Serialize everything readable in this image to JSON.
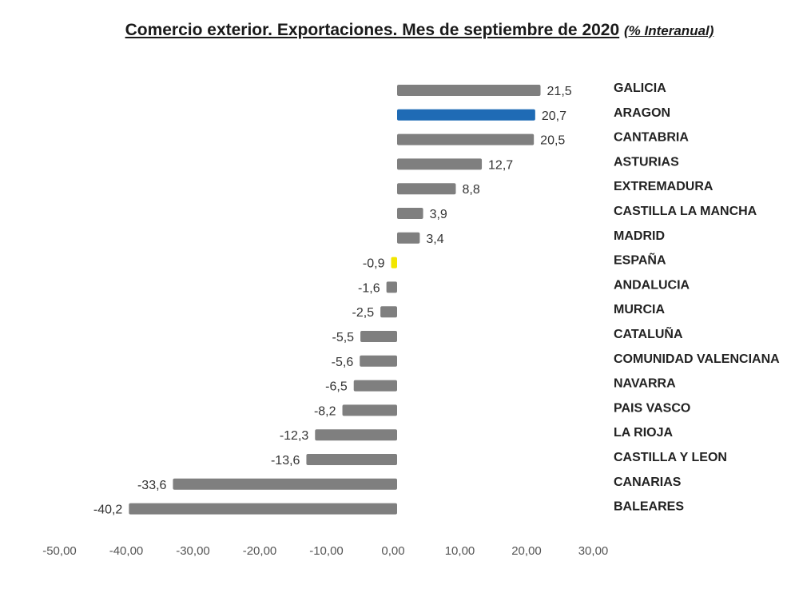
{
  "chart_data": {
    "type": "bar",
    "orientation": "horizontal",
    "title": "Comercio exterior. Exportaciones. Mes de septiembre de 2020",
    "subtitle": "(% Interanual)",
    "categories": [
      "GALICIA",
      "ARAGON",
      "CANTABRIA",
      "ASTURIAS",
      "EXTREMADURA",
      "CASTILLA LA MANCHA",
      "MADRID",
      "ESPAÑA",
      "ANDALUCIA",
      "MURCIA",
      "CATALUÑA",
      "COMUNIDAD VALENCIANA",
      "NAVARRA",
      "PAIS VASCO",
      "LA RIOJA",
      "CASTILLA Y LEON",
      "CANARIAS",
      "BALEARES"
    ],
    "values": [
      21.5,
      20.7,
      20.5,
      12.7,
      8.8,
      3.9,
      3.4,
      -0.9,
      -1.6,
      -2.5,
      -5.5,
      -5.6,
      -6.5,
      -8.2,
      -12.3,
      -13.6,
      -33.6,
      -40.2
    ],
    "value_labels": [
      "21,5",
      "20,7",
      "20,5",
      "12,7",
      "8,8",
      "3,9",
      "3,4",
      "-0,9",
      "-1,6",
      "-2,5",
      "-5,5",
      "-5,6",
      "-6,5",
      "-8,2",
      "-12,3",
      "-13,6",
      "-33,6",
      "-40,2"
    ],
    "xticks": [
      -50,
      -40,
      -30,
      -20,
      -10,
      0,
      10,
      20,
      30
    ],
    "xtick_labels": [
      "-50,00",
      "-40,00",
      "-30,00",
      "-20,00",
      "-10,00",
      "0,00",
      "10,00",
      "20,00",
      "30,00"
    ],
    "xlim": [
      -50,
      30
    ],
    "grid": false,
    "colors": {
      "default": "#7f7f7f",
      "highlight_aragon": "#1f6bb5",
      "highlight_espana": "#f2e600"
    },
    "highlight": {
      "ARAGON": "highlight_aragon",
      "ESPAÑA": "highlight_espana"
    }
  }
}
